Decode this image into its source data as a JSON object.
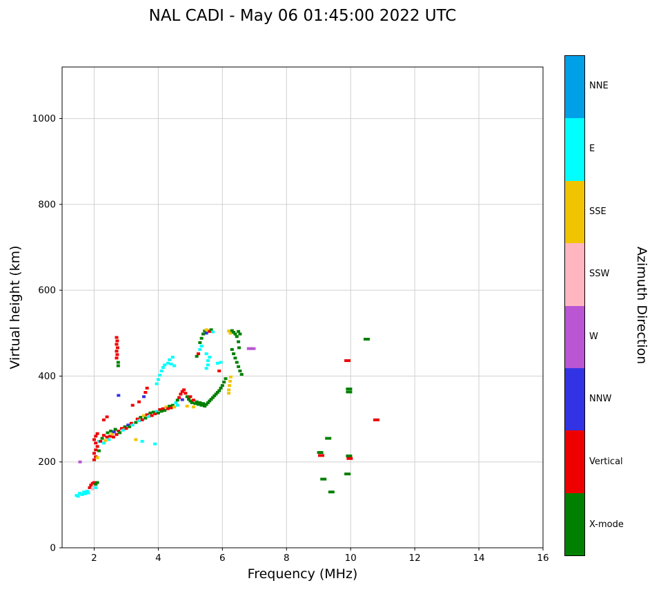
{
  "title": "NAL CADI - May 06 01:45:00 2022 UTC",
  "chart_data": {
    "type": "scatter",
    "title": "NAL CADI - May 06 01:45:00 2022 UTC",
    "xlabel": "Frequency (MHz)",
    "ylabel": "Virtual height (km)",
    "xlim": [
      1,
      16
    ],
    "ylim": [
      0,
      1120
    ],
    "xticks": [
      2,
      4,
      6,
      8,
      10,
      12,
      14,
      16
    ],
    "yticks": [
      0,
      200,
      400,
      600,
      800,
      1000
    ],
    "grid": true,
    "grid_color": "#d0d0d0",
    "legend": {
      "label": "Azimuth Direction",
      "position": "right-colorbar",
      "entries": [
        {
          "name": "NNE",
          "color": "#00A0E8"
        },
        {
          "name": "E",
          "color": "#00FFFF"
        },
        {
          "name": "SSE",
          "color": "#F1C400"
        },
        {
          "name": "SSW",
          "color": "#FFB6C1"
        },
        {
          "name": "W",
          "color": "#BA55D3"
        },
        {
          "name": "NNW",
          "color": "#3333E6"
        },
        {
          "name": "Vertical",
          "color": "#EE0000"
        },
        {
          "name": "X-mode",
          "color": "#008000"
        }
      ]
    },
    "points": [
      [
        1.45,
        122,
        "E"
      ],
      [
        1.5,
        120,
        "E"
      ],
      [
        1.55,
        127,
        "E"
      ],
      [
        1.62,
        124,
        "E"
      ],
      [
        1.68,
        130,
        "E"
      ],
      [
        1.72,
        126,
        "E"
      ],
      [
        1.78,
        132,
        "E"
      ],
      [
        1.82,
        128,
        "E"
      ],
      [
        1.86,
        140,
        "Vertical"
      ],
      [
        1.9,
        146,
        "Vertical"
      ],
      [
        1.95,
        150,
        "Vertical"
      ],
      [
        2.0,
        152,
        "Vertical"
      ],
      [
        2.0,
        144,
        "SSW"
      ],
      [
        1.95,
        137,
        "SSW"
      ],
      [
        2.05,
        148,
        "X-mode"
      ],
      [
        2.1,
        152,
        "X-mode"
      ],
      [
        2.05,
        140,
        "E"
      ],
      [
        1.56,
        200,
        "W"
      ],
      [
        2.0,
        205,
        "Vertical"
      ],
      [
        2.05,
        212,
        "Vertical"
      ],
      [
        2.0,
        220,
        "Vertical"
      ],
      [
        2.05,
        228,
        "Vertical"
      ],
      [
        2.1,
        236,
        "Vertical"
      ],
      [
        2.05,
        244,
        "Vertical"
      ],
      [
        2.0,
        252,
        "Vertical"
      ],
      [
        2.05,
        260,
        "Vertical"
      ],
      [
        2.1,
        266,
        "Vertical"
      ],
      [
        2.1,
        210,
        "SSE"
      ],
      [
        2.15,
        226,
        "X-mode"
      ],
      [
        2.15,
        248,
        "E"
      ],
      [
        2.2,
        248,
        "Vertical"
      ],
      [
        2.25,
        255,
        "X-mode"
      ],
      [
        2.3,
        244,
        "E"
      ],
      [
        2.3,
        262,
        "Vertical"
      ],
      [
        2.35,
        250,
        "SSE"
      ],
      [
        2.4,
        258,
        "Vertical"
      ],
      [
        2.42,
        268,
        "X-mode"
      ],
      [
        2.46,
        252,
        "E"
      ],
      [
        2.5,
        260,
        "Vertical"
      ],
      [
        2.52,
        272,
        "X-mode"
      ],
      [
        2.56,
        265,
        "SSE"
      ],
      [
        2.6,
        258,
        "Vertical"
      ],
      [
        2.62,
        270,
        "NNW"
      ],
      [
        2.66,
        276,
        "X-mode"
      ],
      [
        2.7,
        264,
        "Vertical"
      ],
      [
        2.76,
        272,
        "Vertical"
      ],
      [
        2.8,
        268,
        "X-mode"
      ],
      [
        2.86,
        278,
        "Vertical"
      ],
      [
        2.9,
        274,
        "E"
      ],
      [
        2.96,
        282,
        "X-mode"
      ],
      [
        3.0,
        278,
        "Vertical"
      ],
      [
        3.06,
        286,
        "NNW"
      ],
      [
        3.1,
        282,
        "X-mode"
      ],
      [
        3.16,
        290,
        "Vertical"
      ],
      [
        3.2,
        286,
        "E"
      ],
      [
        2.3,
        298,
        "Vertical"
      ],
      [
        2.4,
        305,
        "Vertical"
      ],
      [
        2.76,
        355,
        "NNW"
      ],
      [
        2.7,
        490,
        "Vertical"
      ],
      [
        2.72,
        482,
        "Vertical"
      ],
      [
        2.7,
        474,
        "Vertical"
      ],
      [
        2.73,
        466,
        "Vertical"
      ],
      [
        2.7,
        458,
        "Vertical"
      ],
      [
        2.72,
        450,
        "Vertical"
      ],
      [
        2.7,
        442,
        "Vertical"
      ],
      [
        2.75,
        432,
        "X-mode"
      ],
      [
        2.75,
        424,
        "X-mode"
      ],
      [
        3.3,
        292,
        "X-mode"
      ],
      [
        3.35,
        300,
        "Vertical"
      ],
      [
        3.4,
        296,
        "E"
      ],
      [
        3.45,
        304,
        "X-mode"
      ],
      [
        3.5,
        298,
        "Vertical"
      ],
      [
        3.55,
        308,
        "SSE"
      ],
      [
        3.6,
        302,
        "X-mode"
      ],
      [
        3.65,
        310,
        "Vertical"
      ],
      [
        3.7,
        306,
        "E"
      ],
      [
        3.75,
        314,
        "X-mode"
      ],
      [
        3.8,
        308,
        "Vertical"
      ],
      [
        3.85,
        316,
        "X-mode"
      ],
      [
        3.9,
        312,
        "Vertical"
      ],
      [
        3.95,
        318,
        "E"
      ],
      [
        4.0,
        314,
        "X-mode"
      ],
      [
        4.05,
        322,
        "Vertical"
      ],
      [
        4.1,
        318,
        "X-mode"
      ],
      [
        4.15,
        324,
        "Vertical"
      ],
      [
        4.2,
        320,
        "X-mode"
      ],
      [
        4.25,
        328,
        "SSE"
      ],
      [
        4.3,
        324,
        "Vertical"
      ],
      [
        4.35,
        330,
        "X-mode"
      ],
      [
        4.4,
        326,
        "Vertical"
      ],
      [
        4.45,
        332,
        "X-mode"
      ],
      [
        4.5,
        328,
        "SSE"
      ],
      [
        3.3,
        252,
        "SSE"
      ],
      [
        3.5,
        248,
        "E"
      ],
      [
        3.9,
        242,
        "E"
      ],
      [
        3.6,
        362,
        "Vertical"
      ],
      [
        3.65,
        372,
        "Vertical"
      ],
      [
        3.4,
        340,
        "Vertical"
      ],
      [
        3.55,
        352,
        "NNW"
      ],
      [
        3.2,
        332,
        "Vertical"
      ],
      [
        3.95,
        382,
        "E"
      ],
      [
        4.0,
        392,
        "E"
      ],
      [
        4.05,
        402,
        "E"
      ],
      [
        4.1,
        412,
        "E"
      ],
      [
        4.15,
        420,
        "E"
      ],
      [
        4.2,
        426,
        "E"
      ],
      [
        4.3,
        430,
        "E"
      ],
      [
        4.4,
        428,
        "E"
      ],
      [
        4.5,
        424,
        "E"
      ],
      [
        4.35,
        438,
        "E"
      ],
      [
        4.45,
        444,
        "E"
      ],
      [
        4.55,
        338,
        "E"
      ],
      [
        4.6,
        344,
        "X-mode"
      ],
      [
        4.65,
        350,
        "Vertical"
      ],
      [
        4.7,
        358,
        "Vertical"
      ],
      [
        4.75,
        364,
        "Vertical"
      ],
      [
        4.8,
        368,
        "Vertical"
      ],
      [
        4.85,
        360,
        "Vertical"
      ],
      [
        4.9,
        352,
        "X-mode"
      ],
      [
        4.95,
        346,
        "X-mode"
      ],
      [
        5.0,
        342,
        "X-mode"
      ],
      [
        5.0,
        352,
        "Vertical"
      ],
      [
        5.05,
        338,
        "X-mode"
      ],
      [
        5.1,
        344,
        "Vertical"
      ],
      [
        5.15,
        336,
        "X-mode"
      ],
      [
        5.2,
        340,
        "X-mode"
      ],
      [
        5.25,
        334,
        "X-mode"
      ],
      [
        5.3,
        338,
        "X-mode"
      ],
      [
        5.35,
        332,
        "X-mode"
      ],
      [
        5.4,
        336,
        "X-mode"
      ],
      [
        5.45,
        330,
        "X-mode"
      ],
      [
        4.9,
        330,
        "SSE"
      ],
      [
        5.1,
        328,
        "SSE"
      ],
      [
        4.6,
        332,
        "E"
      ],
      [
        4.75,
        345,
        "NNW"
      ],
      [
        5.5,
        334,
        "X-mode"
      ],
      [
        5.55,
        338,
        "X-mode"
      ],
      [
        5.6,
        342,
        "X-mode"
      ],
      [
        5.65,
        346,
        "X-mode"
      ],
      [
        5.7,
        350,
        "X-mode"
      ],
      [
        5.75,
        354,
        "X-mode"
      ],
      [
        5.8,
        358,
        "X-mode"
      ],
      [
        5.85,
        362,
        "X-mode"
      ],
      [
        5.9,
        366,
        "X-mode"
      ],
      [
        5.95,
        372,
        "X-mode"
      ],
      [
        6.0,
        378,
        "X-mode"
      ],
      [
        6.05,
        386,
        "X-mode"
      ],
      [
        6.1,
        394,
        "X-mode"
      ],
      [
        6.2,
        360,
        "SSE"
      ],
      [
        6.2,
        368,
        "SSE"
      ],
      [
        6.22,
        378,
        "SSE"
      ],
      [
        6.24,
        388,
        "SSE"
      ],
      [
        6.26,
        398,
        "SSE"
      ],
      [
        5.85,
        430,
        "E"
      ],
      [
        5.95,
        432,
        "E"
      ],
      [
        5.9,
        412,
        "Vertical"
      ],
      [
        5.3,
        478,
        "X-mode"
      ],
      [
        5.35,
        488,
        "X-mode"
      ],
      [
        5.4,
        498,
        "X-mode"
      ],
      [
        5.45,
        505,
        "X-mode"
      ],
      [
        5.5,
        508,
        "SSE"
      ],
      [
        5.55,
        506,
        "SSE"
      ],
      [
        5.6,
        504,
        "Vertical"
      ],
      [
        5.65,
        508,
        "X-mode"
      ],
      [
        5.5,
        500,
        "NNW"
      ],
      [
        5.7,
        503,
        "E"
      ],
      [
        5.5,
        418,
        "E"
      ],
      [
        5.55,
        426,
        "E"
      ],
      [
        5.55,
        436,
        "E"
      ],
      [
        5.6,
        444,
        "E"
      ],
      [
        5.5,
        452,
        "E"
      ],
      [
        5.25,
        452,
        "Vertical"
      ],
      [
        5.3,
        462,
        "E"
      ],
      [
        5.35,
        470,
        "E"
      ],
      [
        5.2,
        446,
        "X-mode"
      ],
      [
        6.2,
        505,
        "SSE"
      ],
      [
        6.25,
        500,
        "SSE"
      ],
      [
        6.3,
        506,
        "X-mode"
      ],
      [
        6.35,
        502,
        "X-mode"
      ],
      [
        6.4,
        498,
        "X-mode"
      ],
      [
        6.45,
        492,
        "X-mode"
      ],
      [
        6.5,
        504,
        "X-mode"
      ],
      [
        6.55,
        498,
        "X-mode"
      ],
      [
        6.3,
        462,
        "X-mode"
      ],
      [
        6.35,
        452,
        "X-mode"
      ],
      [
        6.4,
        442,
        "X-mode"
      ],
      [
        6.45,
        432,
        "X-mode"
      ],
      [
        6.5,
        422,
        "X-mode"
      ],
      [
        6.55,
        412,
        "X-mode"
      ],
      [
        6.6,
        404,
        "X-mode"
      ],
      [
        6.5,
        480,
        "X-mode"
      ],
      [
        6.52,
        466,
        "X-mode"
      ],
      [
        6.85,
        464,
        "W",
        8
      ],
      [
        6.95,
        464,
        "W",
        8
      ],
      [
        9.3,
        255,
        "X-mode",
        9
      ],
      [
        9.05,
        222,
        "X-mode",
        9
      ],
      [
        9.08,
        215,
        "Vertical",
        9
      ],
      [
        9.15,
        160,
        "X-mode",
        9
      ],
      [
        9.4,
        130,
        "X-mode",
        9
      ],
      [
        9.9,
        436,
        "Vertical",
        9
      ],
      [
        9.95,
        370,
        "X-mode",
        9
      ],
      [
        9.95,
        363,
        "X-mode",
        9
      ],
      [
        9.95,
        214,
        "X-mode",
        9
      ],
      [
        9.97,
        208,
        "Vertical",
        9
      ],
      [
        9.9,
        172,
        "X-mode",
        9
      ],
      [
        10.5,
        486,
        "X-mode",
        9
      ],
      [
        10.8,
        298,
        "Vertical",
        9
      ]
    ]
  }
}
